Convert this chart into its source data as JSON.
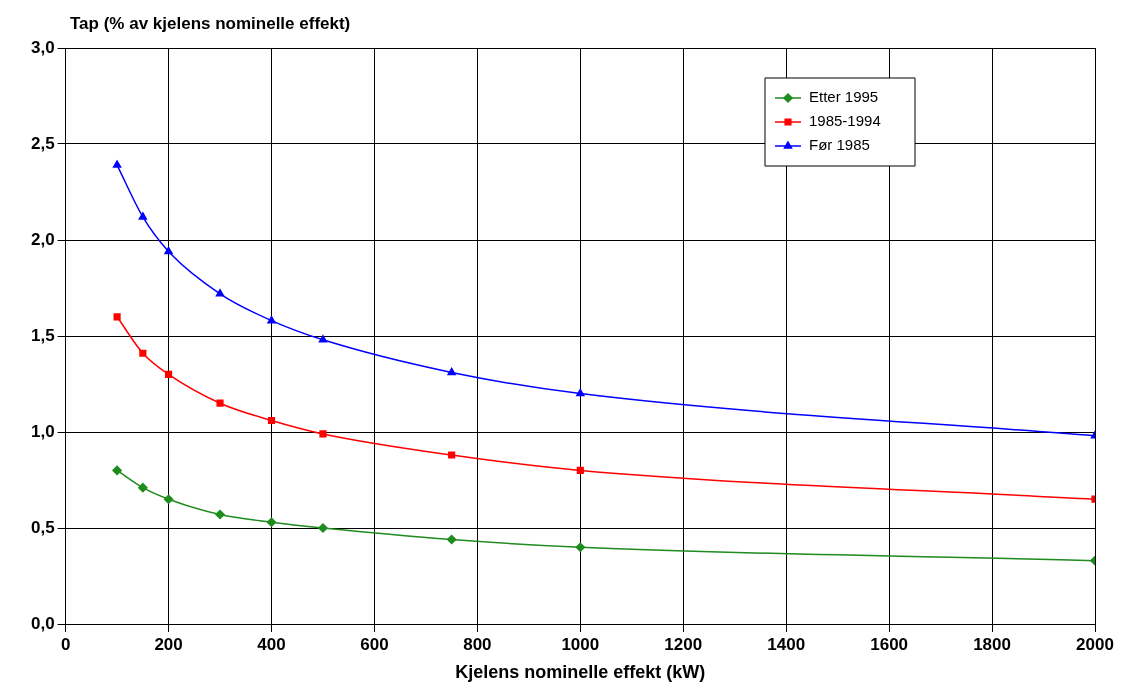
{
  "chart_data": {
    "type": "line",
    "ylabel": "Tap (% av kjelens nominelle effekt)",
    "xlabel": "Kjelens nominelle effekt (kW)",
    "x": [
      100,
      150,
      200,
      300,
      400,
      500,
      750,
      1000,
      2000
    ],
    "series": [
      {
        "name": "Etter 1995",
        "color": "#1e8c1e",
        "marker": "diamond",
        "values": [
          0.8,
          0.71,
          0.65,
          0.57,
          0.53,
          0.5,
          0.44,
          0.4,
          0.33
        ]
      },
      {
        "name": "1985-1994",
        "color": "#ff0000",
        "marker": "square",
        "values": [
          1.6,
          1.41,
          1.3,
          1.15,
          1.06,
          0.99,
          0.88,
          0.8,
          0.65
        ]
      },
      {
        "name": "Før 1985",
        "color": "#0000ff",
        "marker": "triangle",
        "values": [
          2.39,
          2.12,
          1.94,
          1.72,
          1.58,
          1.48,
          1.31,
          1.2,
          0.98
        ]
      }
    ],
    "xlim": [
      0,
      2000
    ],
    "xticks": [
      0,
      200,
      400,
      600,
      800,
      1000,
      1200,
      1400,
      1600,
      1800,
      2000
    ],
    "ylim": [
      0,
      3
    ],
    "yticks": [
      {
        "value": 0,
        "label": "0,0"
      },
      {
        "value": 0.5,
        "label": "0,5"
      },
      {
        "value": 1,
        "label": "1,0"
      },
      {
        "value": 1.5,
        "label": "1,5"
      },
      {
        "value": 2,
        "label": "2,0"
      },
      {
        "value": 2.5,
        "label": "2,5"
      },
      {
        "value": 3,
        "label": "3,0"
      }
    ],
    "grid": true,
    "legend": "top right",
    "line_style": "solid"
  }
}
